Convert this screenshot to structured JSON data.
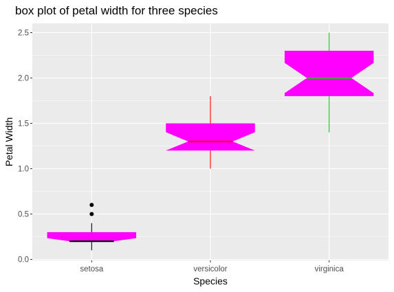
{
  "chart_data": {
    "type": "boxplot",
    "title": "box plot of petal width for three species",
    "xlabel": "Species",
    "ylabel": "Petal Width",
    "ylim": [
      0.0,
      2.5
    ],
    "yticks": [
      0.0,
      0.5,
      1.0,
      1.5,
      2.0,
      2.5
    ],
    "ytick_labels": [
      "0.0",
      "0.5",
      "1.0",
      "1.5",
      "2.0",
      "2.5"
    ],
    "categories": [
      "setosa",
      "versicolor",
      "virginica"
    ],
    "notched": true,
    "grid": true,
    "box_fill": "#ff00ff",
    "panel_background": "#ebebeb",
    "grid_color": "#ffffff",
    "boxes": [
      {
        "category": "setosa",
        "whisker_low": 0.1,
        "q1": 0.2,
        "median": 0.2,
        "q3": 0.3,
        "whisker_high": 0.4,
        "outliers": [
          0.5,
          0.6
        ],
        "line_color": "#000000"
      },
      {
        "category": "versicolor",
        "whisker_low": 1.0,
        "q1": 1.2,
        "median": 1.3,
        "q3": 1.5,
        "whisker_high": 1.8,
        "outliers": [],
        "line_color": "#ff0000"
      },
      {
        "category": "virginica",
        "whisker_low": 1.4,
        "q1": 1.8,
        "median": 2.0,
        "q3": 2.3,
        "whisker_high": 2.5,
        "outliers": [],
        "line_color": "#00cd00"
      }
    ]
  }
}
